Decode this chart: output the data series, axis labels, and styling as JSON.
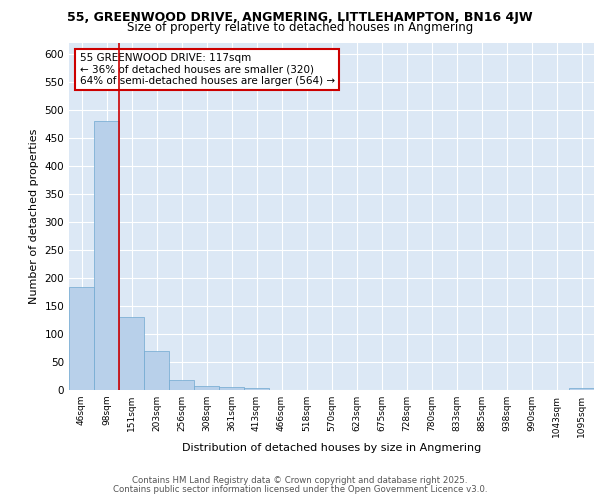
{
  "title_line1": "55, GREENWOOD DRIVE, ANGMERING, LITTLEHAMPTON, BN16 4JW",
  "title_line2": "Size of property relative to detached houses in Angmering",
  "xlabel": "Distribution of detached houses by size in Angmering",
  "ylabel": "Number of detached properties",
  "categories": [
    "46sqm",
    "98sqm",
    "151sqm",
    "203sqm",
    "256sqm",
    "308sqm",
    "361sqm",
    "413sqm",
    "466sqm",
    "518sqm",
    "570sqm",
    "623sqm",
    "675sqm",
    "728sqm",
    "780sqm",
    "833sqm",
    "885sqm",
    "938sqm",
    "990sqm",
    "1043sqm",
    "1095sqm"
  ],
  "values": [
    183,
    480,
    130,
    70,
    18,
    8,
    5,
    4,
    0,
    0,
    0,
    0,
    0,
    0,
    0,
    0,
    0,
    0,
    0,
    0,
    4
  ],
  "bar_color": "#b8d0ea",
  "bar_edge_color": "#6fa8d0",
  "background_color": "#dce8f5",
  "grid_color": "#ffffff",
  "red_line_x": 1.5,
  "annotation_title": "55 GREENWOOD DRIVE: 117sqm",
  "annotation_line2": "← 36% of detached houses are smaller (320)",
  "annotation_line3": "64% of semi-detached houses are larger (564) →",
  "annotation_box_color": "#ffffff",
  "annotation_border_color": "#cc0000",
  "red_line_color": "#cc0000",
  "ylim": [
    0,
    620
  ],
  "yticks": [
    0,
    50,
    100,
    150,
    200,
    250,
    300,
    350,
    400,
    450,
    500,
    550,
    600
  ],
  "footer_line1": "Contains HM Land Registry data © Crown copyright and database right 2025.",
  "footer_line2": "Contains public sector information licensed under the Open Government Licence v3.0."
}
